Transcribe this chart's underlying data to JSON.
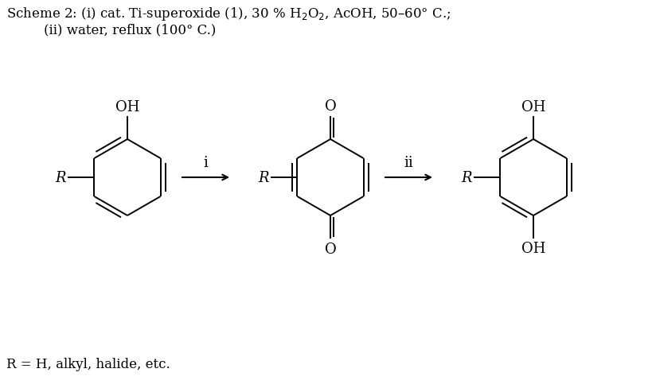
{
  "bg_color": "#ffffff",
  "header_line1": "Scheme 2: (i) cat. Ti-superoxide (1), 30 % H$_2$O$_2$, AcOH, 50–60° C.;",
  "header_line2": "(ii) water, reflux (100° C.)",
  "footnote": "R = H, alkyl, halide, etc.",
  "arrow1_label": "i",
  "arrow2_label": "ii",
  "font_size": 12,
  "chem_font_size": 13,
  "line_width": 1.4,
  "fig_width": 8.24,
  "fig_height": 4.89,
  "dpi": 100
}
